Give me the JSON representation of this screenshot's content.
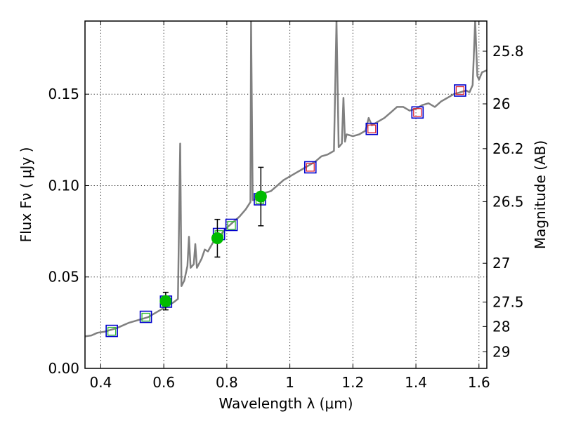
{
  "chart_data": {
    "type": "line",
    "xlabel": "Wavelength  λ (μm)",
    "ylabel": "Flux  Fν  ( μJy )",
    "ylabel_right": "Magnitude (AB)",
    "xlim": [
      0.35,
      1.625
    ],
    "ylim": [
      0,
      0.19
    ],
    "grid": true,
    "x_ticks": [
      {
        "value": 0.4,
        "label": "0.4"
      },
      {
        "value": 0.6,
        "label": "0.6"
      },
      {
        "value": 0.8,
        "label": "0.8"
      },
      {
        "value": 1.0,
        "label": "1"
      },
      {
        "value": 1.2,
        "label": "1.2"
      },
      {
        "value": 1.4,
        "label": "1.4"
      },
      {
        "value": 1.6,
        "label": "1.6"
      }
    ],
    "y_ticks": [
      {
        "value": 0.0,
        "label": "0.00"
      },
      {
        "value": 0.05,
        "label": "0.05"
      },
      {
        "value": 0.1,
        "label": "0.10"
      },
      {
        "value": 0.15,
        "label": "0.15"
      }
    ],
    "right_ticks": [
      {
        "flux": 0.1735,
        "label": "25.8"
      },
      {
        "flux": 0.1447,
        "label": "26"
      },
      {
        "flux": 0.1202,
        "label": "26.2"
      },
      {
        "flux": 0.0912,
        "label": "26.5"
      },
      {
        "flux": 0.0575,
        "label": "27"
      },
      {
        "flux": 0.0363,
        "label": "27.5"
      },
      {
        "flux": 0.0229,
        "label": "28"
      },
      {
        "flux": 0.0091,
        "label": "29"
      }
    ],
    "series": [
      {
        "style": "line",
        "color": "#808080",
        "points": [
          [
            0.35,
            0.0175
          ],
          [
            0.37,
            0.018
          ],
          [
            0.39,
            0.0195
          ],
          [
            0.41,
            0.02
          ],
          [
            0.43,
            0.021
          ],
          [
            0.45,
            0.022
          ],
          [
            0.47,
            0.0235
          ],
          [
            0.49,
            0.025
          ],
          [
            0.51,
            0.026
          ],
          [
            0.53,
            0.027
          ],
          [
            0.55,
            0.028
          ],
          [
            0.57,
            0.03
          ],
          [
            0.59,
            0.032
          ],
          [
            0.61,
            0.034
          ],
          [
            0.63,
            0.036
          ],
          [
            0.645,
            0.038
          ],
          [
            0.652,
            0.123
          ],
          [
            0.656,
            0.045
          ],
          [
            0.665,
            0.048
          ],
          [
            0.675,
            0.056
          ],
          [
            0.68,
            0.072
          ],
          [
            0.685,
            0.055
          ],
          [
            0.695,
            0.057
          ],
          [
            0.7,
            0.068
          ],
          [
            0.705,
            0.055
          ],
          [
            0.72,
            0.06
          ],
          [
            0.73,
            0.065
          ],
          [
            0.74,
            0.064
          ],
          [
            0.76,
            0.07
          ],
          [
            0.78,
            0.073
          ],
          [
            0.8,
            0.077
          ],
          [
            0.82,
            0.08
          ],
          [
            0.84,
            0.083
          ],
          [
            0.86,
            0.087
          ],
          [
            0.875,
            0.091
          ],
          [
            0.877,
            0.19
          ],
          [
            0.882,
            0.092
          ],
          [
            0.9,
            0.093
          ],
          [
            0.92,
            0.096
          ],
          [
            0.94,
            0.097
          ],
          [
            0.96,
            0.1
          ],
          [
            0.98,
            0.103
          ],
          [
            1.0,
            0.105
          ],
          [
            1.02,
            0.107
          ],
          [
            1.04,
            0.109
          ],
          [
            1.06,
            0.111
          ],
          [
            1.08,
            0.113
          ],
          [
            1.1,
            0.116
          ],
          [
            1.12,
            0.117
          ],
          [
            1.14,
            0.119
          ],
          [
            1.148,
            0.19
          ],
          [
            1.155,
            0.121
          ],
          [
            1.165,
            0.123
          ],
          [
            1.17,
            0.148
          ],
          [
            1.175,
            0.124
          ],
          [
            1.18,
            0.128
          ],
          [
            1.2,
            0.127
          ],
          [
            1.22,
            0.128
          ],
          [
            1.24,
            0.13
          ],
          [
            1.25,
            0.137
          ],
          [
            1.26,
            0.133
          ],
          [
            1.28,
            0.135
          ],
          [
            1.3,
            0.137
          ],
          [
            1.32,
            0.14
          ],
          [
            1.34,
            0.143
          ],
          [
            1.36,
            0.143
          ],
          [
            1.38,
            0.141
          ],
          [
            1.4,
            0.142
          ],
          [
            1.42,
            0.144
          ],
          [
            1.44,
            0.145
          ],
          [
            1.46,
            0.143
          ],
          [
            1.48,
            0.146
          ],
          [
            1.5,
            0.148
          ],
          [
            1.52,
            0.15
          ],
          [
            1.54,
            0.151
          ],
          [
            1.56,
            0.152
          ],
          [
            1.57,
            0.151
          ],
          [
            1.58,
            0.155
          ],
          [
            1.588,
            0.19
          ],
          [
            1.595,
            0.16
          ],
          [
            1.6,
            0.158
          ],
          [
            1.61,
            0.162
          ],
          [
            1.625,
            0.163
          ]
        ]
      },
      {
        "style": "square",
        "color": "#0000cc",
        "points": [
          [
            0.435,
            0.0205
          ],
          [
            0.543,
            0.0282
          ],
          [
            0.607,
            0.0365
          ],
          [
            0.775,
            0.0735
          ],
          [
            0.815,
            0.0785
          ],
          [
            0.905,
            0.0925
          ],
          [
            1.065,
            0.11
          ],
          [
            1.26,
            0.131
          ],
          [
            1.405,
            0.14
          ],
          [
            1.54,
            0.152
          ]
        ]
      },
      {
        "style": "square-small",
        "color": "#33bb33",
        "points": [
          [
            0.435,
            0.0203
          ],
          [
            0.543,
            0.028
          ],
          [
            0.607,
            0.0362
          ],
          [
            0.775,
            0.0732
          ],
          [
            0.815,
            0.0782
          ],
          [
            0.905,
            0.0922
          ]
        ]
      },
      {
        "style": "square-small",
        "color": "#dd2233",
        "points": [
          [
            1.065,
            0.11
          ],
          [
            1.26,
            0.131
          ],
          [
            1.405,
            0.14
          ],
          [
            1.54,
            0.152
          ]
        ]
      },
      {
        "style": "circle-errorbar",
        "color": "#00bb00",
        "points": [
          {
            "x": 0.606,
            "y": 0.0368,
            "yerr": 0.0048
          },
          {
            "x": 0.77,
            "y": 0.0712,
            "yerr": 0.0103
          },
          {
            "x": 0.908,
            "y": 0.094,
            "yerr": 0.016
          }
        ]
      }
    ]
  }
}
